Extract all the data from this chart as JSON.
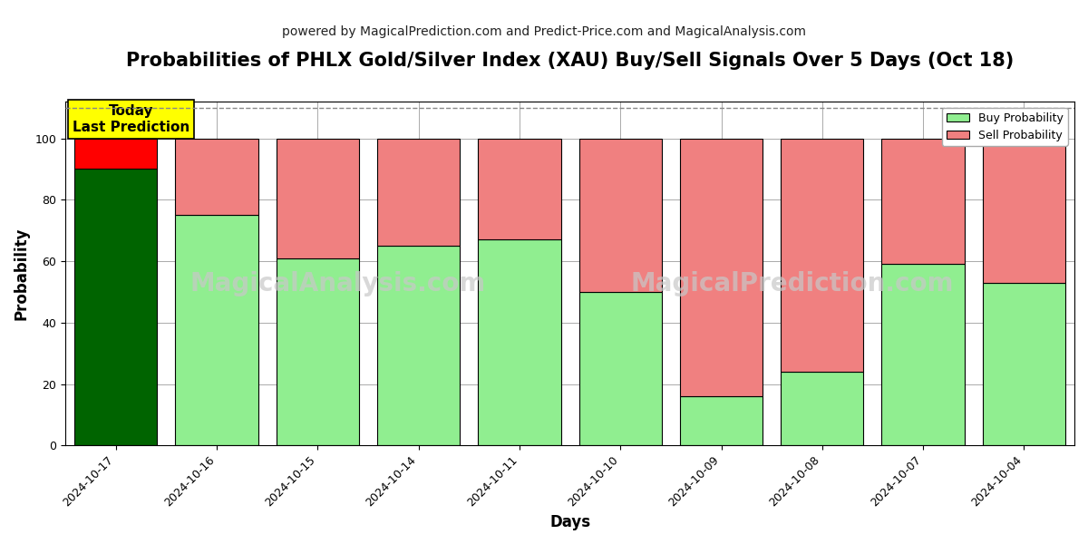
{
  "title": "Probabilities of PHLX Gold/Silver Index (XAU) Buy/Sell Signals Over 5 Days (Oct 18)",
  "subtitle": "powered by MagicalPrediction.com and Predict-Price.com and MagicalAnalysis.com",
  "xlabel": "Days",
  "ylabel": "Probability",
  "categories": [
    "2024-10-17",
    "2024-10-16",
    "2024-10-15",
    "2024-10-14",
    "2024-10-11",
    "2024-10-10",
    "2024-10-09",
    "2024-10-08",
    "2024-10-07",
    "2024-10-04"
  ],
  "buy_values": [
    90,
    75,
    61,
    65,
    67,
    50,
    16,
    24,
    59,
    53
  ],
  "sell_values": [
    10,
    25,
    39,
    35,
    33,
    50,
    84,
    76,
    41,
    47
  ],
  "today_buy_color": "#006400",
  "today_sell_color": "#FF0000",
  "normal_buy_color": "#90EE90",
  "normal_sell_color": "#F08080",
  "today_annotation_bg": "#FFFF00",
  "today_annotation_text": "Today\nLast Prediction",
  "ylim": [
    0,
    112
  ],
  "dashed_line_y": 110,
  "legend_buy_label": "Buy Probability",
  "legend_sell_label": "Sell Probability",
  "bar_edge_color": "#000000",
  "bar_linewidth": 0.8,
  "grid_color": "#aaaaaa",
  "background_color": "#ffffff",
  "title_fontsize": 15,
  "subtitle_fontsize": 10,
  "axis_label_fontsize": 12,
  "tick_fontsize": 9,
  "bar_width": 0.82
}
